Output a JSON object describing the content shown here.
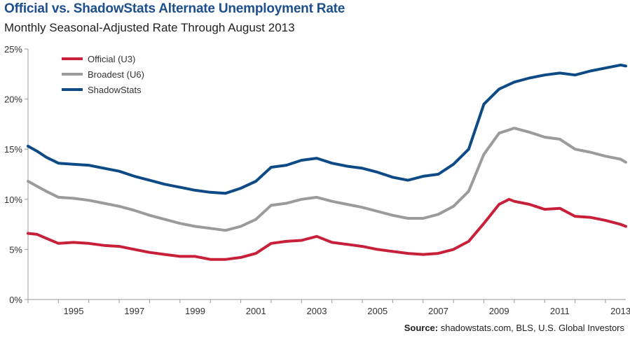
{
  "header": {
    "title": "Official vs. ShadowStats Alternate Unemployment Rate",
    "subtitle": "Monthly Seasonal-Adjusted Rate Through August 2013"
  },
  "footer": {
    "source_label": "Source:",
    "source_text": " shadowstats.com, BLS, U.S. Global Investors"
  },
  "colors": {
    "official": "#c8203a",
    "broadest": "#9b9b9b",
    "shadowstats": "#0d4a86",
    "axis": "#999999"
  },
  "chart_data": {
    "type": "line",
    "title": "Official vs. ShadowStats Alternate Unemployment Rate",
    "subtitle": "Monthly Seasonal-Adjusted Rate Through August 2013",
    "xlabel": "",
    "ylabel": "",
    "xlim": [
      1994.0,
      2013.67
    ],
    "ylim": [
      0,
      25
    ],
    "x_ticks": [
      1995,
      1997,
      1999,
      2001,
      2003,
      2005,
      2007,
      2009,
      2011,
      2013
    ],
    "y_ticks": [
      0,
      5,
      10,
      15,
      20,
      25
    ],
    "y_tick_labels": [
      "0%",
      "5%",
      "10%",
      "15%",
      "20%",
      "25%"
    ],
    "grid": false,
    "legend": "top-left",
    "series": [
      {
        "name": "Official (U3)",
        "color": "#c8203a",
        "points": [
          [
            1994.0,
            6.6
          ],
          [
            1994.3,
            6.5
          ],
          [
            1994.6,
            6.1
          ],
          [
            1995.0,
            5.6
          ],
          [
            1995.5,
            5.7
          ],
          [
            1996.0,
            5.6
          ],
          [
            1996.5,
            5.4
          ],
          [
            1997.0,
            5.3
          ],
          [
            1997.5,
            5.0
          ],
          [
            1998.0,
            4.7
          ],
          [
            1998.5,
            4.5
          ],
          [
            1999.0,
            4.3
          ],
          [
            1999.5,
            4.3
          ],
          [
            2000.0,
            4.0
          ],
          [
            2000.5,
            4.0
          ],
          [
            2001.0,
            4.2
          ],
          [
            2001.5,
            4.6
          ],
          [
            2002.0,
            5.6
          ],
          [
            2002.5,
            5.8
          ],
          [
            2003.0,
            5.9
          ],
          [
            2003.5,
            6.3
          ],
          [
            2004.0,
            5.7
          ],
          [
            2004.5,
            5.5
          ],
          [
            2005.0,
            5.3
          ],
          [
            2005.5,
            5.0
          ],
          [
            2006.0,
            4.8
          ],
          [
            2006.5,
            4.6
          ],
          [
            2007.0,
            4.5
          ],
          [
            2007.5,
            4.6
          ],
          [
            2008.0,
            5.0
          ],
          [
            2008.5,
            5.8
          ],
          [
            2009.0,
            7.6
          ],
          [
            2009.5,
            9.5
          ],
          [
            2009.83,
            10.0
          ],
          [
            2010.0,
            9.8
          ],
          [
            2010.5,
            9.5
          ],
          [
            2011.0,
            9.0
          ],
          [
            2011.5,
            9.1
          ],
          [
            2012.0,
            8.3
          ],
          [
            2012.5,
            8.2
          ],
          [
            2013.0,
            7.9
          ],
          [
            2013.5,
            7.5
          ],
          [
            2013.67,
            7.3
          ]
        ]
      },
      {
        "name": "Broadest (U6)",
        "color": "#9b9b9b",
        "points": [
          [
            1994.0,
            11.8
          ],
          [
            1994.3,
            11.3
          ],
          [
            1994.6,
            10.8
          ],
          [
            1995.0,
            10.2
          ],
          [
            1995.5,
            10.1
          ],
          [
            1996.0,
            9.9
          ],
          [
            1996.5,
            9.6
          ],
          [
            1997.0,
            9.3
          ],
          [
            1997.5,
            8.9
          ],
          [
            1998.0,
            8.4
          ],
          [
            1998.5,
            8.0
          ],
          [
            1999.0,
            7.6
          ],
          [
            1999.5,
            7.3
          ],
          [
            2000.0,
            7.1
          ],
          [
            2000.5,
            6.9
          ],
          [
            2001.0,
            7.3
          ],
          [
            2001.5,
            8.0
          ],
          [
            2002.0,
            9.4
          ],
          [
            2002.5,
            9.6
          ],
          [
            2003.0,
            10.0
          ],
          [
            2003.5,
            10.2
          ],
          [
            2004.0,
            9.8
          ],
          [
            2004.5,
            9.5
          ],
          [
            2005.0,
            9.2
          ],
          [
            2005.5,
            8.8
          ],
          [
            2006.0,
            8.4
          ],
          [
            2006.5,
            8.1
          ],
          [
            2007.0,
            8.1
          ],
          [
            2007.5,
            8.5
          ],
          [
            2008.0,
            9.3
          ],
          [
            2008.5,
            10.8
          ],
          [
            2009.0,
            14.5
          ],
          [
            2009.5,
            16.6
          ],
          [
            2010.0,
            17.1
          ],
          [
            2010.5,
            16.7
          ],
          [
            2011.0,
            16.2
          ],
          [
            2011.5,
            16.0
          ],
          [
            2012.0,
            15.0
          ],
          [
            2012.5,
            14.7
          ],
          [
            2013.0,
            14.3
          ],
          [
            2013.5,
            14.0
          ],
          [
            2013.67,
            13.7
          ]
        ]
      },
      {
        "name": "ShadowStats",
        "color": "#0d4a86",
        "points": [
          [
            1994.0,
            15.3
          ],
          [
            1994.3,
            14.8
          ],
          [
            1994.6,
            14.2
          ],
          [
            1995.0,
            13.6
          ],
          [
            1995.5,
            13.5
          ],
          [
            1996.0,
            13.4
          ],
          [
            1996.5,
            13.1
          ],
          [
            1997.0,
            12.8
          ],
          [
            1997.5,
            12.3
          ],
          [
            1998.0,
            11.9
          ],
          [
            1998.5,
            11.5
          ],
          [
            1999.0,
            11.2
          ],
          [
            1999.5,
            10.9
          ],
          [
            2000.0,
            10.7
          ],
          [
            2000.5,
            10.6
          ],
          [
            2001.0,
            11.1
          ],
          [
            2001.5,
            11.8
          ],
          [
            2002.0,
            13.2
          ],
          [
            2002.5,
            13.4
          ],
          [
            2003.0,
            13.9
          ],
          [
            2003.5,
            14.1
          ],
          [
            2004.0,
            13.6
          ],
          [
            2004.5,
            13.3
          ],
          [
            2005.0,
            13.1
          ],
          [
            2005.5,
            12.7
          ],
          [
            2006.0,
            12.2
          ],
          [
            2006.5,
            11.9
          ],
          [
            2007.0,
            12.3
          ],
          [
            2007.5,
            12.5
          ],
          [
            2008.0,
            13.5
          ],
          [
            2008.5,
            15.0
          ],
          [
            2009.0,
            19.5
          ],
          [
            2009.5,
            21.0
          ],
          [
            2010.0,
            21.7
          ],
          [
            2010.5,
            22.1
          ],
          [
            2011.0,
            22.4
          ],
          [
            2011.5,
            22.6
          ],
          [
            2012.0,
            22.4
          ],
          [
            2012.5,
            22.8
          ],
          [
            2013.0,
            23.1
          ],
          [
            2013.5,
            23.4
          ],
          [
            2013.67,
            23.3
          ]
        ]
      }
    ]
  }
}
